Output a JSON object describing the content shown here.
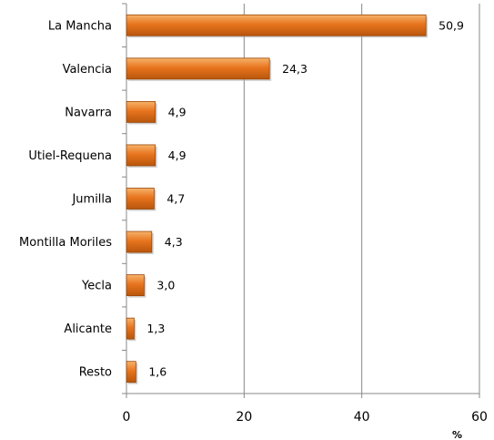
{
  "chart_data": {
    "type": "bar",
    "orientation": "horizontal",
    "categories": [
      "La Mancha",
      "Valencia",
      "Navarra",
      "Utiel-Requena",
      "Jumilla",
      "Montilla Moriles",
      "Yecla",
      "Alicante",
      "Resto"
    ],
    "values": [
      50.9,
      24.3,
      4.9,
      4.9,
      4.7,
      4.3,
      3.0,
      1.3,
      1.6
    ],
    "value_labels": [
      "50,9",
      "24,3",
      "4,9",
      "4,9",
      "4,7",
      "4,3",
      "3,0",
      "1,3",
      "1,6"
    ],
    "x_ticks": [
      "0",
      "20",
      "40",
      "60"
    ],
    "x_tick_values": [
      0,
      20,
      40,
      60
    ],
    "xlim": [
      0,
      60
    ],
    "xlabel": "%",
    "grid": "vertical",
    "legend": "none",
    "bar_color": "#e8741e"
  }
}
